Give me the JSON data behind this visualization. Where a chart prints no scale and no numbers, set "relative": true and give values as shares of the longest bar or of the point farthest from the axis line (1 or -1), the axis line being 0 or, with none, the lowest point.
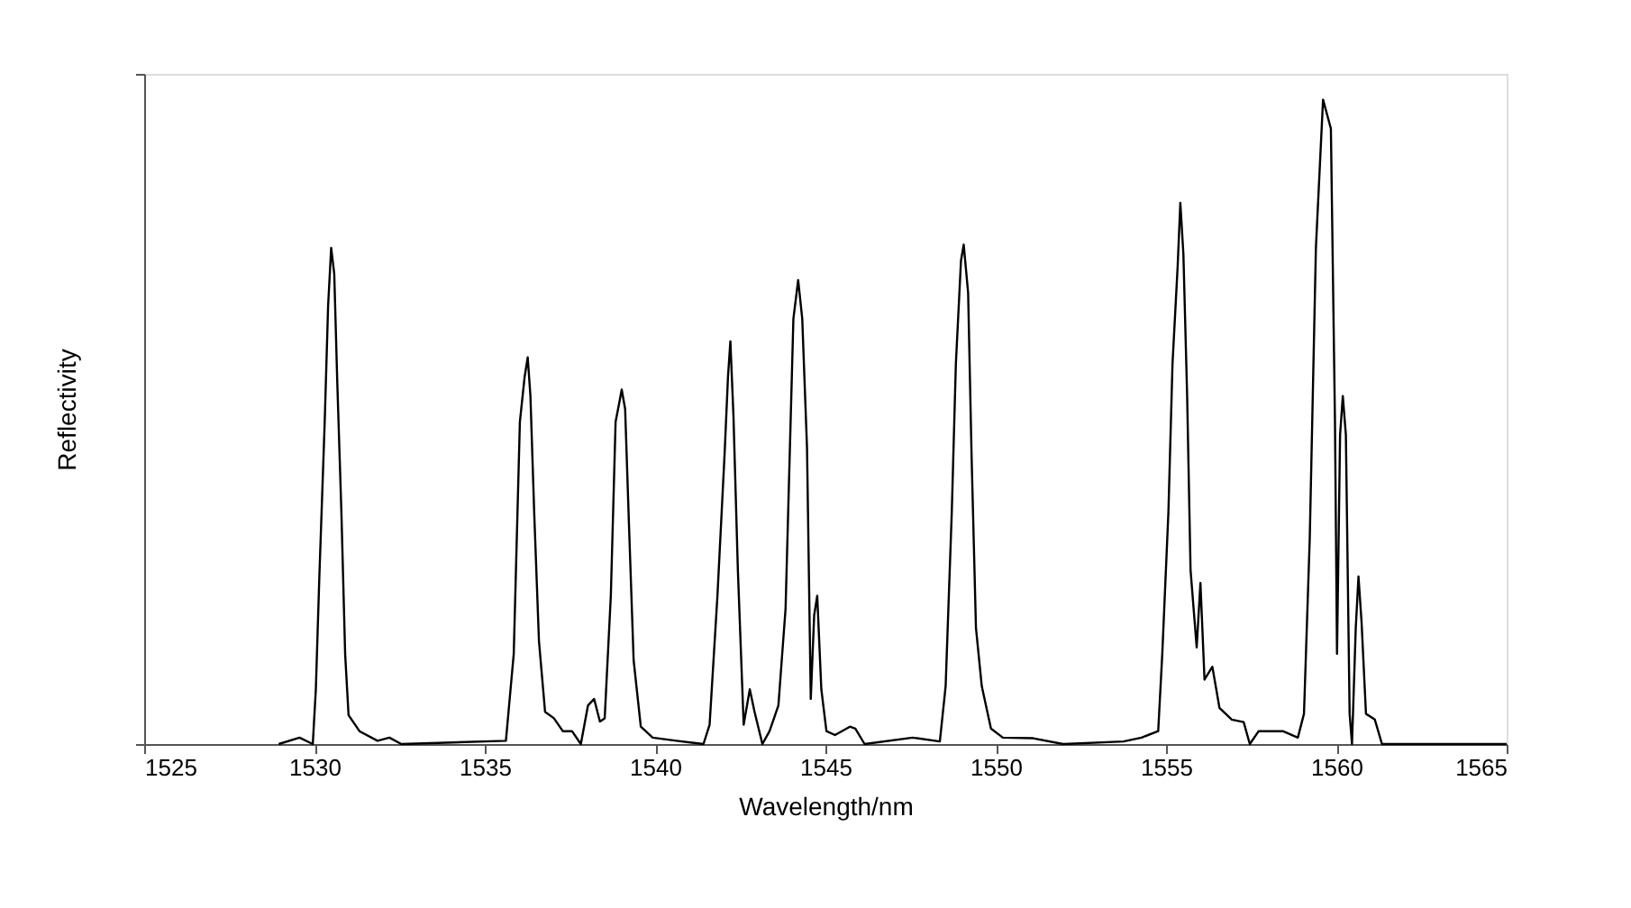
{
  "chart_data": {
    "type": "line",
    "relative": true,
    "xlabel": "Wavelength/nm",
    "ylabel": "Reflectivity",
    "xlim": [
      1525,
      1565
    ],
    "xticks": [
      1525,
      1530,
      1535,
      1540,
      1545,
      1550,
      1555,
      1560,
      1565
    ],
    "grid": false,
    "marker": "none",
    "line_style": "solid",
    "series": [
      {
        "color": "#000000",
        "x": [
          1528.95,
          1529.56,
          1529.95,
          1530.04,
          1530.14,
          1530.3,
          1530.4,
          1530.49,
          1530.58,
          1530.67,
          1530.79,
          1530.9,
          1531.0,
          1531.32,
          1531.85,
          1532.2,
          1532.55,
          1535.62,
          1535.85,
          1536.03,
          1536.17,
          1536.26,
          1536.34,
          1536.45,
          1536.59,
          1536.77,
          1537.03,
          1537.29,
          1537.56,
          1537.82,
          1538.03,
          1538.21,
          1538.38,
          1538.52,
          1538.7,
          1538.84,
          1538.95,
          1539.02,
          1539.12,
          1539.23,
          1539.37,
          1539.58,
          1539.93,
          1540.63,
          1541.42,
          1541.6,
          1541.83,
          1542.04,
          1542.14,
          1542.21,
          1542.3,
          1542.43,
          1542.6,
          1542.78,
          1542.92,
          1543.15,
          1543.36,
          1543.62,
          1543.83,
          1544.06,
          1544.2,
          1544.32,
          1544.46,
          1544.57,
          1544.67,
          1544.76,
          1544.88,
          1545.03,
          1545.28,
          1545.72,
          1545.88,
          1546.15,
          1547.56,
          1548.36,
          1548.53,
          1548.71,
          1548.83,
          1548.98,
          1549.06,
          1549.19,
          1549.29,
          1549.42,
          1549.59,
          1549.86,
          1550.21,
          1551.1,
          1551.98,
          1553.75,
          1554.28,
          1554.77,
          1554.89,
          1555.07,
          1555.19,
          1555.34,
          1555.42,
          1555.51,
          1555.62,
          1555.72,
          1555.9,
          1556.01,
          1556.13,
          1556.36,
          1556.57,
          1556.93,
          1557.28,
          1557.46,
          1557.72,
          1558.43,
          1558.87,
          1559.05,
          1559.22,
          1559.4,
          1559.61,
          1559.84,
          1559.96,
          1560.02,
          1560.11,
          1560.19,
          1560.28,
          1560.39,
          1560.46,
          1560.57,
          1560.65,
          1560.74,
          1560.87,
          1561.13,
          1561.34,
          1562.58,
          1565.0
        ],
        "values": [
          0.0,
          0.01,
          0.0,
          0.085,
          0.255,
          0.5,
          0.68,
          0.77,
          0.73,
          0.56,
          0.36,
          0.14,
          0.045,
          0.02,
          0.005,
          0.01,
          0.0,
          0.005,
          0.14,
          0.5,
          0.57,
          0.6,
          0.54,
          0.36,
          0.16,
          0.05,
          0.04,
          0.02,
          0.02,
          0.0,
          0.06,
          0.07,
          0.035,
          0.04,
          0.23,
          0.5,
          0.53,
          0.55,
          0.52,
          0.345,
          0.13,
          0.027,
          0.01,
          0.005,
          0.0,
          0.03,
          0.23,
          0.45,
          0.57,
          0.625,
          0.51,
          0.27,
          0.03,
          0.085,
          0.05,
          0.0,
          0.02,
          0.06,
          0.21,
          0.66,
          0.72,
          0.66,
          0.46,
          0.07,
          0.2,
          0.23,
          0.085,
          0.02,
          0.014,
          0.027,
          0.024,
          0.0,
          0.01,
          0.004,
          0.09,
          0.36,
          0.59,
          0.75,
          0.775,
          0.7,
          0.45,
          0.18,
          0.09,
          0.024,
          0.01,
          0.009,
          0.0,
          0.004,
          0.01,
          0.02,
          0.14,
          0.36,
          0.59,
          0.74,
          0.84,
          0.76,
          0.54,
          0.27,
          0.15,
          0.25,
          0.1,
          0.12,
          0.056,
          0.038,
          0.034,
          0.0,
          0.02,
          0.02,
          0.01,
          0.047,
          0.32,
          0.77,
          1.0,
          0.955,
          0.5,
          0.14,
          0.48,
          0.54,
          0.48,
          0.047,
          0.0,
          0.18,
          0.26,
          0.19,
          0.047,
          0.038,
          0.0,
          0.0,
          0.0
        ]
      }
    ]
  }
}
